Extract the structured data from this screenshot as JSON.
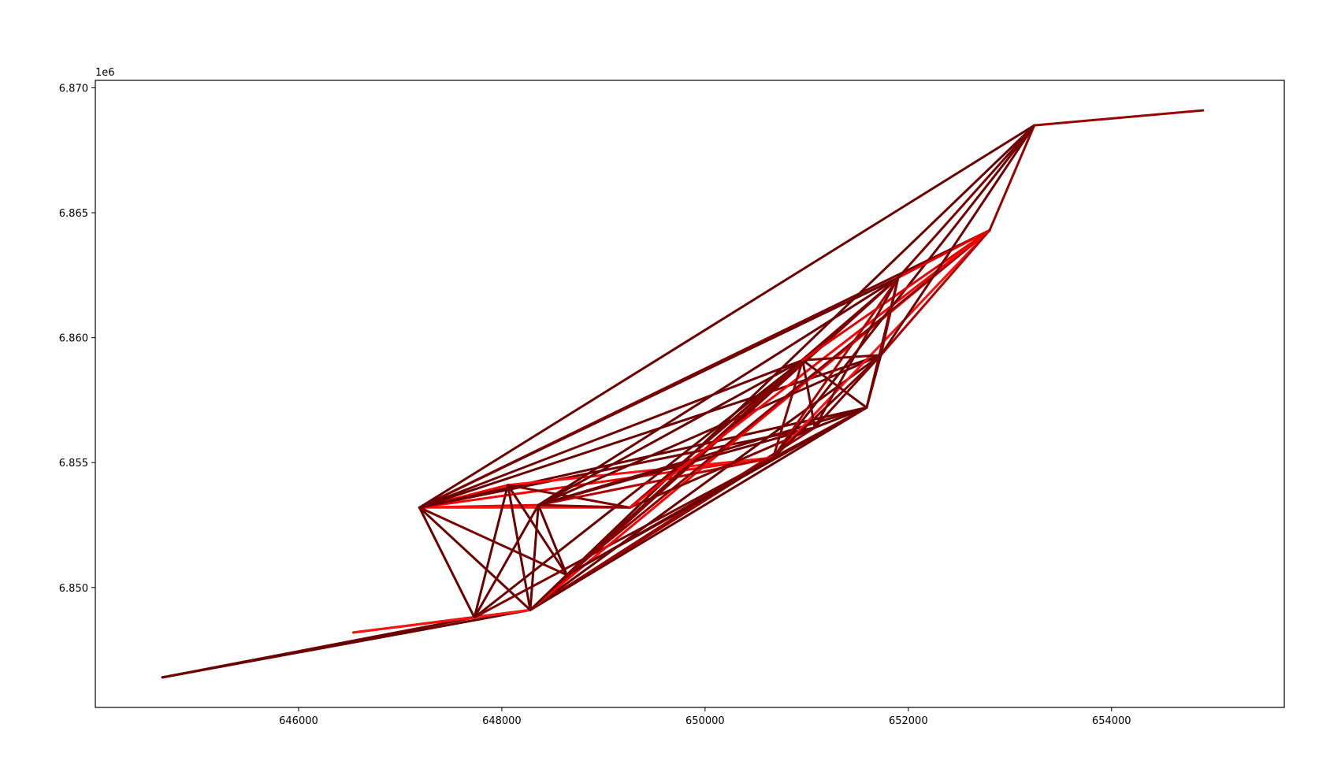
{
  "chart_data": {
    "type": "line",
    "title": "",
    "xlabel": "",
    "ylabel": "",
    "y_offset_label": "1e6",
    "xlim": [
      644000,
      655700
    ],
    "ylim": [
      6.8452,
      6.8703
    ],
    "x_ticks": [
      {
        "value": 646000,
        "label": "646000"
      },
      {
        "value": 648000,
        "label": "648000"
      },
      {
        "value": 650000,
        "label": "650000"
      },
      {
        "value": 652000,
        "label": "652000"
      },
      {
        "value": 654000,
        "label": "654000"
      }
    ],
    "y_ticks": [
      {
        "value": 6.85,
        "label": "6.850"
      },
      {
        "value": 6.855,
        "label": "6.855"
      },
      {
        "value": 6.86,
        "label": "6.860"
      },
      {
        "value": 6.865,
        "label": "6.865"
      },
      {
        "value": 6.87,
        "label": "6.870"
      }
    ],
    "grid": false,
    "legend": "none",
    "nodes": {
      "A": [
        644660,
        6.8464
      ],
      "B": [
        646540,
        6.8482
      ],
      "C": [
        647190,
        6.8532
      ],
      "D": [
        647730,
        6.8488
      ],
      "E": [
        648060,
        6.8541
      ],
      "F": [
        648280,
        6.8491
      ],
      "G": [
        648360,
        6.8533
      ],
      "H": [
        648640,
        6.8505
      ],
      "I": [
        649260,
        6.8532
      ],
      "J": [
        650670,
        6.8552
      ],
      "K": [
        650960,
        6.8591
      ],
      "L": [
        651080,
        6.8564
      ],
      "M": [
        651590,
        6.8572
      ],
      "N": [
        651730,
        6.8593
      ],
      "O": [
        651900,
        6.8624
      ],
      "P": [
        652800,
        6.8643
      ],
      "Q": [
        653240,
        6.8685
      ],
      "R": [
        654900,
        6.8691
      ]
    },
    "edges": [
      {
        "from": "A",
        "to": "D",
        "color": "#6b0000"
      },
      {
        "from": "A",
        "to": "F",
        "color": "#6b0000"
      },
      {
        "from": "B",
        "to": "F",
        "color": "#8a0000"
      },
      {
        "from": "B",
        "to": "D",
        "color": "#ff1010"
      },
      {
        "from": "D",
        "to": "F",
        "color": "#ff1a1a"
      },
      {
        "from": "C",
        "to": "D",
        "color": "#6b0000"
      },
      {
        "from": "C",
        "to": "F",
        "color": "#6b0000"
      },
      {
        "from": "C",
        "to": "E",
        "color": "#ff0000"
      },
      {
        "from": "C",
        "to": "G",
        "color": "#e60000"
      },
      {
        "from": "C",
        "to": "I",
        "color": "#ff1a1a"
      },
      {
        "from": "C",
        "to": "H",
        "color": "#7a0000"
      },
      {
        "from": "C",
        "to": "J",
        "color": "#ff0000"
      },
      {
        "from": "C",
        "to": "K",
        "color": "#700000"
      },
      {
        "from": "C",
        "to": "L",
        "color": "#700000"
      },
      {
        "from": "C",
        "to": "M",
        "color": "#6b0000"
      },
      {
        "from": "C",
        "to": "N",
        "color": "#6b0000"
      },
      {
        "from": "C",
        "to": "O",
        "color": "#6b0000"
      },
      {
        "from": "C",
        "to": "P",
        "color": "#7a0000"
      },
      {
        "from": "C",
        "to": "Q",
        "color": "#6b0000"
      },
      {
        "from": "D",
        "to": "E",
        "color": "#6b0000"
      },
      {
        "from": "D",
        "to": "G",
        "color": "#6b0000"
      },
      {
        "from": "D",
        "to": "K",
        "color": "#6b0000"
      },
      {
        "from": "D",
        "to": "J",
        "color": "#7a0000"
      },
      {
        "from": "F",
        "to": "E",
        "color": "#700000"
      },
      {
        "from": "F",
        "to": "G",
        "color": "#6b0000"
      },
      {
        "from": "F",
        "to": "J",
        "color": "#8a0000"
      },
      {
        "from": "F",
        "to": "K",
        "color": "#ff1a1a"
      },
      {
        "from": "F",
        "to": "L",
        "color": "#9a0000"
      },
      {
        "from": "F",
        "to": "M",
        "color": "#6b0000"
      },
      {
        "from": "F",
        "to": "N",
        "color": "#6b0000"
      },
      {
        "from": "F",
        "to": "O",
        "color": "#8a0000"
      },
      {
        "from": "F",
        "to": "P",
        "color": "#ff0000"
      },
      {
        "from": "F",
        "to": "Q",
        "color": "#6b0000"
      },
      {
        "from": "E",
        "to": "J",
        "color": "#ff1010"
      },
      {
        "from": "E",
        "to": "I",
        "color": "#7a0000"
      },
      {
        "from": "E",
        "to": "H",
        "color": "#6b0000"
      },
      {
        "from": "G",
        "to": "J",
        "color": "#b00000"
      },
      {
        "from": "G",
        "to": "H",
        "color": "#6b0000"
      },
      {
        "from": "G",
        "to": "I",
        "color": "#8a0000"
      },
      {
        "from": "G",
        "to": "L",
        "color": "#700000"
      },
      {
        "from": "G",
        "to": "M",
        "color": "#700000"
      },
      {
        "from": "G",
        "to": "K",
        "color": "#6b0000"
      },
      {
        "from": "G",
        "to": "N",
        "color": "#6b0000"
      },
      {
        "from": "G",
        "to": "O",
        "color": "#6b0000"
      },
      {
        "from": "H",
        "to": "J",
        "color": "#7a0000"
      },
      {
        "from": "H",
        "to": "K",
        "color": "#8a0000"
      },
      {
        "from": "H",
        "to": "M",
        "color": "#6b0000"
      },
      {
        "from": "H",
        "to": "O",
        "color": "#7a0000"
      },
      {
        "from": "H",
        "to": "P",
        "color": "#8a0000"
      },
      {
        "from": "I",
        "to": "K",
        "color": "#9a0000"
      },
      {
        "from": "I",
        "to": "L",
        "color": "#7a0000"
      },
      {
        "from": "I",
        "to": "O",
        "color": "#7a0000"
      },
      {
        "from": "I",
        "to": "P",
        "color": "#ff0000"
      },
      {
        "from": "J",
        "to": "K",
        "color": "#8a0000"
      },
      {
        "from": "J",
        "to": "M",
        "color": "#7a0000"
      },
      {
        "from": "J",
        "to": "O",
        "color": "#b00000"
      },
      {
        "from": "J",
        "to": "P",
        "color": "#ff1010"
      },
      {
        "from": "J",
        "to": "Q",
        "color": "#700000"
      },
      {
        "from": "J",
        "to": "N",
        "color": "#7a0000"
      },
      {
        "from": "K",
        "to": "M",
        "color": "#6b0000"
      },
      {
        "from": "K",
        "to": "L",
        "color": "#700000"
      },
      {
        "from": "K",
        "to": "N",
        "color": "#7a0000"
      },
      {
        "from": "K",
        "to": "P",
        "color": "#e60000"
      },
      {
        "from": "L",
        "to": "M",
        "color": "#6b0000"
      },
      {
        "from": "L",
        "to": "N",
        "color": "#7a0000"
      },
      {
        "from": "L",
        "to": "O",
        "color": "#7a0000"
      },
      {
        "from": "M",
        "to": "N",
        "color": "#6b0000"
      },
      {
        "from": "M",
        "to": "O",
        "color": "#7a0000"
      },
      {
        "from": "N",
        "to": "O",
        "color": "#8a0000"
      },
      {
        "from": "N",
        "to": "P",
        "color": "#b00000"
      },
      {
        "from": "O",
        "to": "P",
        "color": "#e60000"
      },
      {
        "from": "P",
        "to": "Q",
        "color": "#9a0000"
      },
      {
        "from": "O",
        "to": "Q",
        "color": "#7a0000"
      },
      {
        "from": "N",
        "to": "Q",
        "color": "#700000"
      },
      {
        "from": "Q",
        "to": "R",
        "color": "#9a0000"
      }
    ]
  }
}
